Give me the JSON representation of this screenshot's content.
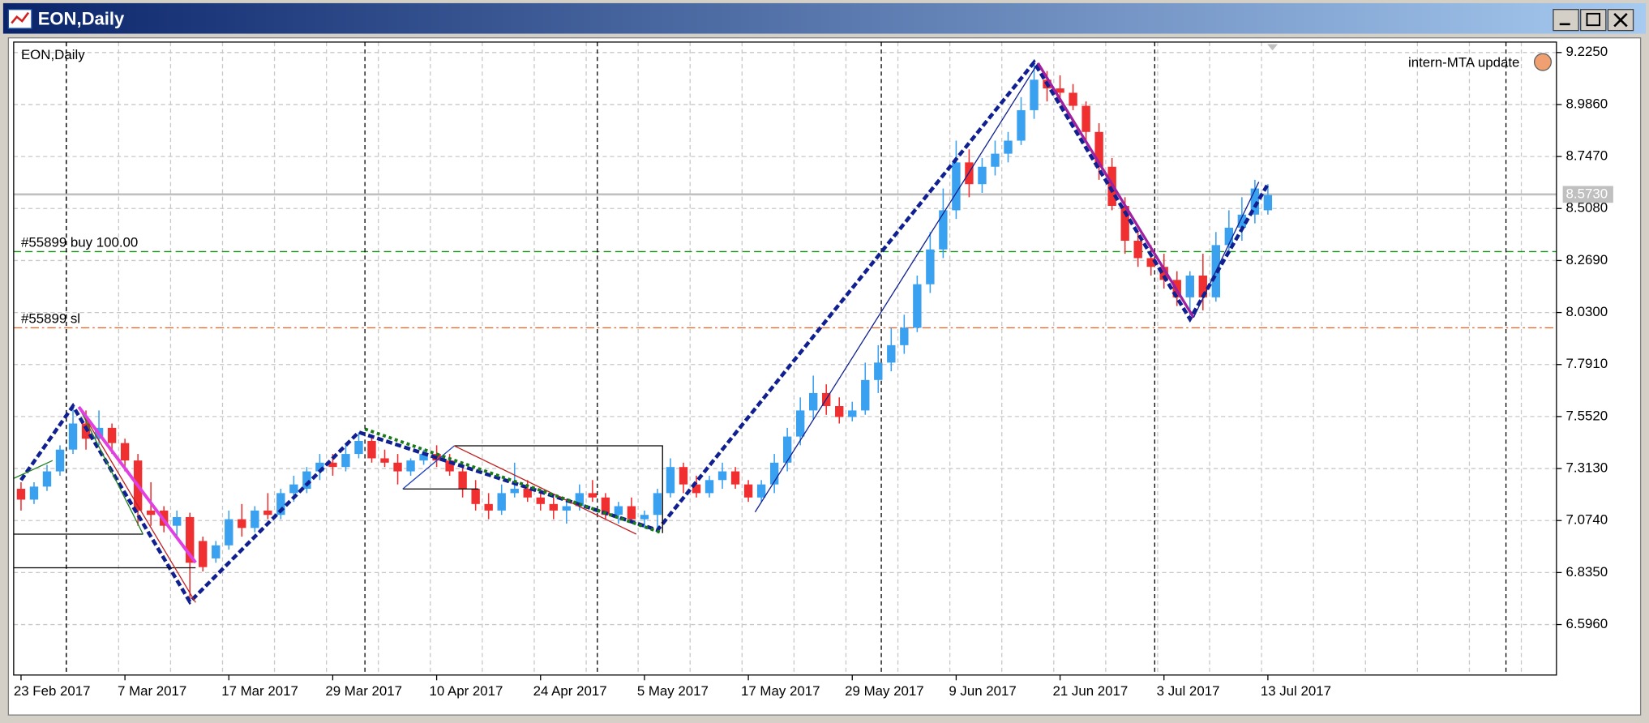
{
  "window": {
    "title": "EON,Daily"
  },
  "chart_data": {
    "type": "candlestick",
    "title": "EON,Daily",
    "annotation": "intern-MTA update",
    "up_color": "#3aa0f0",
    "down_color": "#f03030",
    "grid": true,
    "ylim": [
      6.364,
      9.273
    ],
    "yticks": [
      {
        "value": 9.225,
        "label": "9.2250"
      },
      {
        "value": 8.986,
        "label": "8.9860"
      },
      {
        "value": 8.747,
        "label": "8.7470"
      },
      {
        "value": 8.508,
        "label": "8.5080"
      },
      {
        "value": 8.269,
        "label": "8.2690"
      },
      {
        "value": 8.03,
        "label": "8.0300"
      },
      {
        "value": 7.791,
        "label": "7.7910"
      },
      {
        "value": 7.552,
        "label": "7.5520"
      },
      {
        "value": 7.313,
        "label": "7.3130"
      },
      {
        "value": 7.074,
        "label": "7.0740"
      },
      {
        "value": 6.835,
        "label": "6.8350"
      },
      {
        "value": 6.596,
        "label": "6.5960"
      }
    ],
    "categories": [
      "23 Feb 2017",
      null,
      null,
      null,
      null,
      null,
      null,
      null,
      "7 Mar 2017",
      null,
      null,
      null,
      null,
      null,
      null,
      null,
      "17 Mar 2017",
      null,
      null,
      null,
      null,
      null,
      null,
      null,
      "29 Mar 2017",
      null,
      null,
      null,
      null,
      null,
      null,
      null,
      "10 Apr 2017",
      null,
      null,
      null,
      null,
      null,
      null,
      null,
      "24 Apr 2017",
      null,
      null,
      null,
      null,
      null,
      null,
      null,
      "5 May 2017",
      null,
      null,
      null,
      null,
      null,
      null,
      null,
      "17 May 2017",
      null,
      null,
      null,
      null,
      null,
      null,
      null,
      "29 May 2017",
      null,
      null,
      null,
      null,
      null,
      null,
      null,
      "9 Jun 2017",
      null,
      null,
      null,
      null,
      null,
      null,
      null,
      "21 Jun 2017",
      null,
      null,
      null,
      null,
      null,
      null,
      null,
      "3 Jul 2017",
      null,
      null,
      null,
      null,
      null,
      null,
      null,
      "13 Jul 2017"
    ],
    "ohlc": [
      [
        7.22,
        7.25,
        7.12,
        7.17
      ],
      [
        7.17,
        7.25,
        7.15,
        7.23
      ],
      [
        7.23,
        7.33,
        7.21,
        7.3
      ],
      [
        7.3,
        7.42,
        7.28,
        7.4
      ],
      [
        7.4,
        7.6,
        7.38,
        7.52
      ],
      [
        7.52,
        7.58,
        7.4,
        7.45
      ],
      [
        7.45,
        7.58,
        7.42,
        7.5
      ],
      [
        7.5,
        7.52,
        7.38,
        7.43
      ],
      [
        7.43,
        7.45,
        7.3,
        7.35
      ],
      [
        7.35,
        7.38,
        7.05,
        7.12
      ],
      [
        7.12,
        7.25,
        7.05,
        7.1
      ],
      [
        7.12,
        7.14,
        7.02,
        7.05
      ],
      [
        7.05,
        7.12,
        7.0,
        7.09
      ],
      [
        7.09,
        7.11,
        6.7,
        6.88
      ],
      [
        6.98,
        7.0,
        6.84,
        6.86
      ],
      [
        6.9,
        6.98,
        6.88,
        6.96
      ],
      [
        6.96,
        7.12,
        6.94,
        7.08
      ],
      [
        7.08,
        7.15,
        7.0,
        7.04
      ],
      [
        7.04,
        7.14,
        7.02,
        7.12
      ],
      [
        7.12,
        7.2,
        7.08,
        7.1
      ],
      [
        7.1,
        7.22,
        7.08,
        7.2
      ],
      [
        7.2,
        7.28,
        7.16,
        7.24
      ],
      [
        7.22,
        7.32,
        7.2,
        7.3
      ],
      [
        7.3,
        7.38,
        7.26,
        7.34
      ],
      [
        7.34,
        7.38,
        7.28,
        7.32
      ],
      [
        7.32,
        7.42,
        7.3,
        7.38
      ],
      [
        7.38,
        7.48,
        7.36,
        7.44
      ],
      [
        7.44,
        7.46,
        7.34,
        7.36
      ],
      [
        7.36,
        7.4,
        7.32,
        7.34
      ],
      [
        7.34,
        7.38,
        7.24,
        7.3
      ],
      [
        7.3,
        7.36,
        7.28,
        7.35
      ],
      [
        7.35,
        7.4,
        7.33,
        7.38
      ],
      [
        7.38,
        7.42,
        7.32,
        7.35
      ],
      [
        7.35,
        7.38,
        7.28,
        7.3
      ],
      [
        7.3,
        7.33,
        7.18,
        7.22
      ],
      [
        7.22,
        7.26,
        7.12,
        7.15
      ],
      [
        7.15,
        7.2,
        7.08,
        7.12
      ],
      [
        7.12,
        7.24,
        7.1,
        7.2
      ],
      [
        7.2,
        7.34,
        7.18,
        7.22
      ],
      [
        7.22,
        7.26,
        7.16,
        7.18
      ],
      [
        7.18,
        7.22,
        7.12,
        7.15
      ],
      [
        7.15,
        7.18,
        7.08,
        7.12
      ],
      [
        7.12,
        7.16,
        7.06,
        7.14
      ],
      [
        7.14,
        7.24,
        7.12,
        7.2
      ],
      [
        7.2,
        7.26,
        7.16,
        7.18
      ],
      [
        7.18,
        7.2,
        7.08,
        7.1
      ],
      [
        7.1,
        7.16,
        7.06,
        7.14
      ],
      [
        7.14,
        7.18,
        7.06,
        7.08
      ],
      [
        7.08,
        7.12,
        7.04,
        7.1
      ],
      [
        7.1,
        7.22,
        7.03,
        7.2
      ],
      [
        7.2,
        7.36,
        7.18,
        7.32
      ],
      [
        7.32,
        7.34,
        7.2,
        7.24
      ],
      [
        7.24,
        7.28,
        7.18,
        7.2
      ],
      [
        7.2,
        7.28,
        7.18,
        7.26
      ],
      [
        7.26,
        7.34,
        7.22,
        7.3
      ],
      [
        7.3,
        7.32,
        7.22,
        7.24
      ],
      [
        7.24,
        7.26,
        7.16,
        7.18
      ],
      [
        7.18,
        7.26,
        7.16,
        7.24
      ],
      [
        7.24,
        7.38,
        7.2,
        7.34
      ],
      [
        7.34,
        7.5,
        7.3,
        7.46
      ],
      [
        7.46,
        7.64,
        7.42,
        7.58
      ],
      [
        7.58,
        7.74,
        7.54,
        7.66
      ],
      [
        7.66,
        7.7,
        7.56,
        7.6
      ],
      [
        7.6,
        7.64,
        7.52,
        7.55
      ],
      [
        7.55,
        7.62,
        7.53,
        7.58
      ],
      [
        7.58,
        7.8,
        7.56,
        7.72
      ],
      [
        7.72,
        7.88,
        7.66,
        7.8
      ],
      [
        7.8,
        7.96,
        7.76,
        7.88
      ],
      [
        7.88,
        8.02,
        7.84,
        7.96
      ],
      [
        7.96,
        8.2,
        7.94,
        8.16
      ],
      [
        8.16,
        8.4,
        8.12,
        8.32
      ],
      [
        8.32,
        8.6,
        8.28,
        8.5
      ],
      [
        8.5,
        8.82,
        8.46,
        8.72
      ],
      [
        8.72,
        8.78,
        8.56,
        8.62
      ],
      [
        8.62,
        8.74,
        8.58,
        8.7
      ],
      [
        8.7,
        8.82,
        8.66,
        8.76
      ],
      [
        8.76,
        8.86,
        8.72,
        8.82
      ],
      [
        8.82,
        9.02,
        8.8,
        8.96
      ],
      [
        8.96,
        9.18,
        8.92,
        9.1
      ],
      [
        9.1,
        9.14,
        9.0,
        9.06
      ],
      [
        9.06,
        9.12,
        9.0,
        9.04
      ],
      [
        9.04,
        9.08,
        8.96,
        8.98
      ],
      [
        8.98,
        9.0,
        8.82,
        8.86
      ],
      [
        8.86,
        8.9,
        8.64,
        8.7
      ],
      [
        8.7,
        8.74,
        8.5,
        8.52
      ],
      [
        8.52,
        8.56,
        8.3,
        8.36
      ],
      [
        8.36,
        8.4,
        8.24,
        8.28
      ],
      [
        8.28,
        8.34,
        8.2,
        8.24
      ],
      [
        8.24,
        8.3,
        8.14,
        8.18
      ],
      [
        8.18,
        8.22,
        8.06,
        8.1
      ],
      [
        8.1,
        8.22,
        8.0,
        8.2
      ],
      [
        8.2,
        8.3,
        8.04,
        8.1
      ],
      [
        8.1,
        8.4,
        8.08,
        8.34
      ],
      [
        8.34,
        8.5,
        8.3,
        8.42
      ],
      [
        8.42,
        8.56,
        8.36,
        8.48
      ],
      [
        8.48,
        8.64,
        8.44,
        8.6
      ],
      [
        8.5,
        8.62,
        8.48,
        8.57
      ]
    ],
    "zigzag": {
      "color": "#102090",
      "x": [
        0,
        4,
        13,
        26,
        49,
        78,
        90,
        96
      ],
      "values": [
        7.26,
        7.6,
        6.7,
        7.48,
        7.03,
        9.18,
        8.0,
        8.62
      ]
    },
    "levels": [
      {
        "label": "#55899 buy 100.00",
        "value": 8.31,
        "color": "#109010",
        "dash": "dashed"
      },
      {
        "label": "#55899 sl",
        "value": 7.96,
        "color": "#f06020",
        "dash": "dash-dot"
      }
    ],
    "bid": {
      "value": 8.573,
      "label": "8.5730",
      "color": "#c0c0c0"
    }
  }
}
